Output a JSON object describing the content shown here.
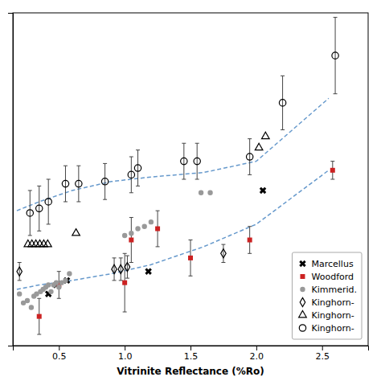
{
  "chart_data": {
    "type": "scatter",
    "xlabel": "Vitrinite Reflectance (%Ro)",
    "xlim": [
      0.15,
      2.85
    ],
    "ylim": [
      1.08,
      1.82
    ],
    "xticks": [
      0.5,
      {
        "value": 1.0,
        "label": "1.0"
      },
      1.5,
      {
        "value": 2.0,
        "label": "2.0"
      },
      2.5
    ],
    "tick_labels": "x",
    "grid": false,
    "legend": "lower right",
    "series": [
      {
        "name": "Marcellus",
        "type": "scatter",
        "marker": "x",
        "color": "black",
        "x": [
          0.42,
          0.48,
          0.56,
          1.18,
          2.05
        ],
        "values": [
          1.195,
          1.215,
          1.225,
          1.245,
          1.425
        ]
      },
      {
        "name": "Woodford",
        "type": "scatter",
        "marker": "square",
        "color": "#cc2222",
        "x": [
          0.35,
          0.5,
          1.0,
          1.05,
          1.25,
          1.5,
          1.95,
          2.58
        ],
        "values": [
          1.145,
          1.215,
          1.22,
          1.315,
          1.34,
          1.275,
          1.315,
          1.47
        ],
        "errors": [
          0.04,
          0.03,
          0.065,
          0.05,
          0.04,
          0.04,
          0.03,
          0.02
        ]
      },
      {
        "name": "Kimmerid.",
        "type": "scatter",
        "marker": "circle",
        "color": "#999999",
        "x": [
          0.2,
          0.23,
          0.26,
          0.29,
          0.31,
          0.33,
          0.36,
          0.38,
          0.4,
          0.42,
          0.44,
          0.46,
          0.48,
          0.5,
          0.52,
          0.55,
          0.58,
          1.0,
          1.05,
          1.1,
          1.15,
          1.2,
          1.58,
          1.65
        ],
        "values": [
          1.195,
          1.175,
          1.18,
          1.165,
          1.19,
          1.195,
          1.2,
          1.205,
          1.21,
          1.215,
          1.2,
          1.215,
          1.22,
          1.21,
          1.22,
          1.225,
          1.24,
          1.325,
          1.33,
          1.34,
          1.345,
          1.355,
          1.42,
          1.42
        ]
      },
      {
        "name": "Kinghorn-",
        "type": "scatter",
        "marker": "diamond-open",
        "color": "black",
        "x": [
          0.2,
          0.92,
          0.97,
          1.02,
          1.75
        ],
        "values": [
          1.245,
          1.25,
          1.25,
          1.255,
          1.285
        ],
        "errors": [
          0.02,
          0.025,
          0.025,
          0.025,
          0.02
        ]
      },
      {
        "name": "Kinghorn-",
        "type": "scatter",
        "marker": "triangle-open",
        "color": "black",
        "x": [
          0.265,
          0.295,
          0.325,
          0.355,
          0.385,
          0.415,
          0.63,
          2.02,
          2.07
        ],
        "values": [
          1.305,
          1.305,
          1.305,
          1.305,
          1.305,
          1.305,
          1.33,
          1.52,
          1.545
        ]
      },
      {
        "name": "Kinghorn-",
        "type": "scatter",
        "marker": "circle-open",
        "color": "black",
        "x": [
          0.28,
          0.35,
          0.42,
          0.55,
          0.65,
          0.85,
          1.05,
          1.1,
          1.45,
          1.55,
          1.95,
          2.2,
          2.6
        ],
        "values": [
          1.375,
          1.385,
          1.4,
          1.44,
          1.44,
          1.445,
          1.46,
          1.475,
          1.49,
          1.49,
          1.5,
          1.62,
          1.725
        ],
        "errors": [
          0.05,
          0.05,
          0.05,
          0.04,
          0.04,
          0.04,
          0.04,
          0.04,
          0.04,
          0.04,
          0.04,
          0.06,
          0.085
        ]
      },
      {
        "type": "line",
        "line_style": "dashed",
        "color": "#6699cc",
        "x": [
          0.18,
          0.35,
          0.6,
          0.9,
          1.2,
          1.6,
          2.0,
          2.55
        ],
        "values": [
          1.205,
          1.215,
          1.225,
          1.24,
          1.26,
          1.3,
          1.35,
          1.47
        ]
      },
      {
        "type": "line",
        "line_style": "dashed",
        "color": "#6699cc",
        "x": [
          0.18,
          0.35,
          0.6,
          0.9,
          1.2,
          1.6,
          2.0,
          2.55
        ],
        "values": [
          1.38,
          1.4,
          1.425,
          1.445,
          1.455,
          1.465,
          1.49,
          1.63
        ]
      }
    ]
  }
}
